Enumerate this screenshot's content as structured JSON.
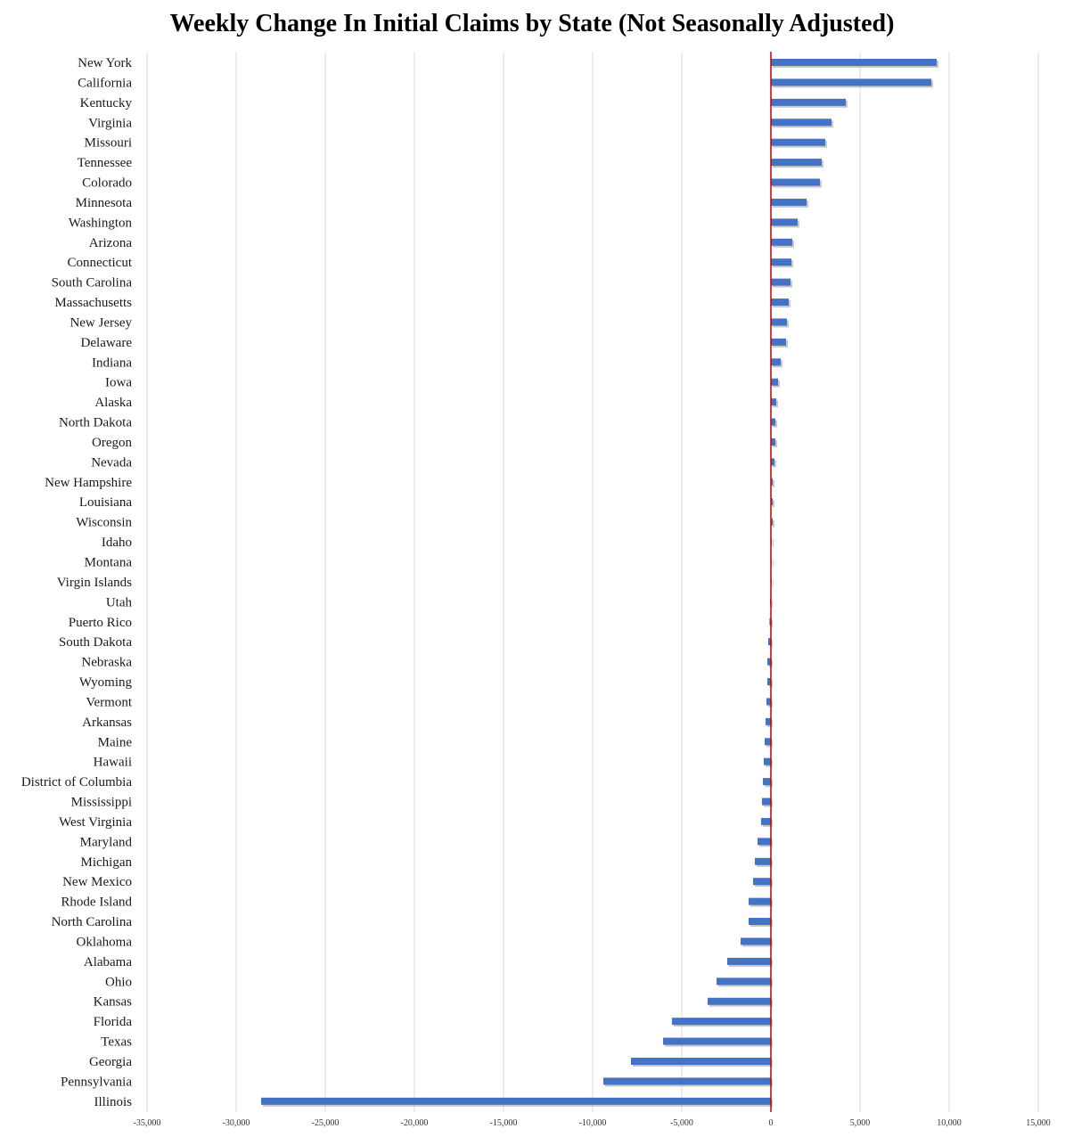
{
  "colors": {
    "bar": "#4472c4",
    "zero_line": "#c00000",
    "grid": "#d9d9d9",
    "background": "#ffffff"
  },
  "chart_data": {
    "type": "bar",
    "orientation": "horizontal",
    "title": "Weekly Change In Initial Claims by State (Not Seasonally Adjusted)",
    "xlabel": "",
    "ylabel": "",
    "xlim": [
      -35000,
      15000
    ],
    "x_ticks": [
      -35000,
      -30000,
      -25000,
      -20000,
      -15000,
      -10000,
      -5000,
      0,
      5000,
      10000,
      15000
    ],
    "x_tick_labels": [
      "-35,000",
      "-30,000",
      "-25,000",
      "-20,000",
      "-15,000",
      "-10,000",
      "-5,000",
      "0",
      "5,000",
      "10,000",
      "15,000"
    ],
    "grid": "vertical",
    "legend": "none",
    "categories": [
      "New York",
      "California",
      "Kentucky",
      "Virginia",
      "Missouri",
      "Tennessee",
      "Colorado",
      "Minnesota",
      "Washington",
      "Arizona",
      "Connecticut",
      "South Carolina",
      "Massachusetts",
      "New Jersey",
      "Delaware",
      "Indiana",
      "Iowa",
      "Alaska",
      "North Dakota",
      "Oregon",
      "Nevada",
      "New Hampshire",
      "Louisiana",
      "Wisconsin",
      "Idaho",
      "Montana",
      "Virgin Islands",
      "Utah",
      "Puerto Rico",
      "South Dakota",
      "Nebraska",
      "Wyoming",
      "Vermont",
      "Arkansas",
      "Maine",
      "Hawaii",
      "District of Columbia",
      "Mississippi",
      "West Virginia",
      "Maryland",
      "Michigan",
      "New Mexico",
      "Rhode Island",
      "North Carolina",
      "Oklahoma",
      "Alabama",
      "Ohio",
      "Kansas",
      "Florida",
      "Texas",
      "Georgia",
      "Pennsylvania",
      "Illinois"
    ],
    "values": [
      9300,
      9000,
      4200,
      3400,
      3050,
      2850,
      2750,
      2000,
      1500,
      1200,
      1150,
      1100,
      1000,
      900,
      850,
      550,
      400,
      300,
      250,
      250,
      200,
      100,
      100,
      100,
      50,
      20,
      10,
      -50,
      -80,
      -150,
      -200,
      -200,
      -250,
      -300,
      -350,
      -400,
      -450,
      -500,
      -550,
      -750,
      -900,
      -1000,
      -1250,
      -1250,
      -1700,
      -2450,
      -3050,
      -3550,
      -5550,
      -6050,
      -7850,
      -9400,
      -28600
    ]
  }
}
